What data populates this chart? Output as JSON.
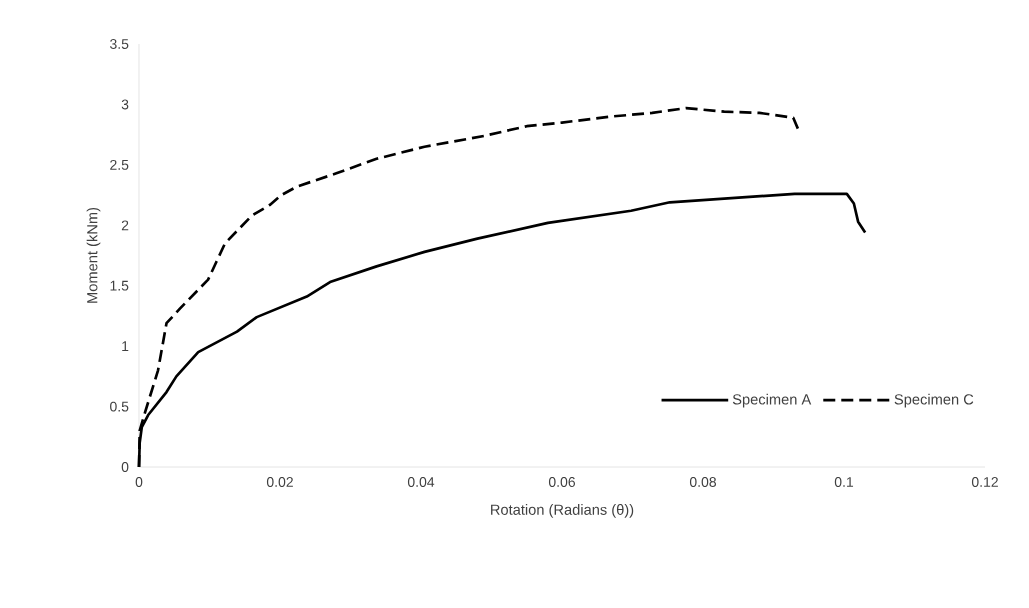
{
  "chart_data": {
    "type": "line",
    "xlabel": "Rotation (Radians (θ))",
    "ylabel": "Moment (kNm)",
    "xlim": [
      0,
      0.12
    ],
    "xticks": [
      0,
      0.02,
      0.04,
      0.06,
      0.08,
      0.1,
      0.12
    ],
    "ylim": [
      0,
      3.5
    ],
    "yticks": [
      0,
      0.5,
      1,
      1.5,
      2,
      2.5,
      3,
      3.5
    ],
    "grid": false,
    "legend": "bottom right",
    "series": [
      {
        "name": "Specimen A",
        "color": "#000000",
        "line_style": "solid",
        "x": [
          0,
          0.0001,
          0.0004,
          0.0013,
          0.0039,
          0.0053,
          0.0084,
          0.0139,
          0.0167,
          0.0238,
          0.0271,
          0.0337,
          0.0405,
          0.048,
          0.058,
          0.0698,
          0.0753,
          0.093,
          0.1004,
          0.1014,
          0.102,
          0.103
        ],
        "values": [
          0,
          0.2,
          0.33,
          0.43,
          0.62,
          0.75,
          0.95,
          1.12,
          1.24,
          1.41,
          1.53,
          1.66,
          1.78,
          1.89,
          2.02,
          2.12,
          2.19,
          2.26,
          2.26,
          2.18,
          2.03,
          1.94
        ]
      },
      {
        "name": "Specimen C",
        "color": "#000000",
        "line_style": "dashed",
        "x": [
          0,
          0.0001,
          0.0009,
          0.0027,
          0.0039,
          0.0058,
          0.0098,
          0.011,
          0.0122,
          0.016,
          0.0186,
          0.0202,
          0.0224,
          0.028,
          0.0337,
          0.0405,
          0.049,
          0.055,
          0.06,
          0.067,
          0.0728,
          0.0776,
          0.083,
          0.088,
          0.0905,
          0.0928,
          0.0936
        ],
        "values": [
          0,
          0.3,
          0.46,
          0.8,
          1.19,
          1.31,
          1.55,
          1.7,
          1.85,
          2.08,
          2.17,
          2.25,
          2.32,
          2.43,
          2.55,
          2.65,
          2.74,
          2.82,
          2.85,
          2.9,
          2.93,
          2.97,
          2.94,
          2.93,
          2.91,
          2.89,
          2.78
        ]
      }
    ]
  }
}
